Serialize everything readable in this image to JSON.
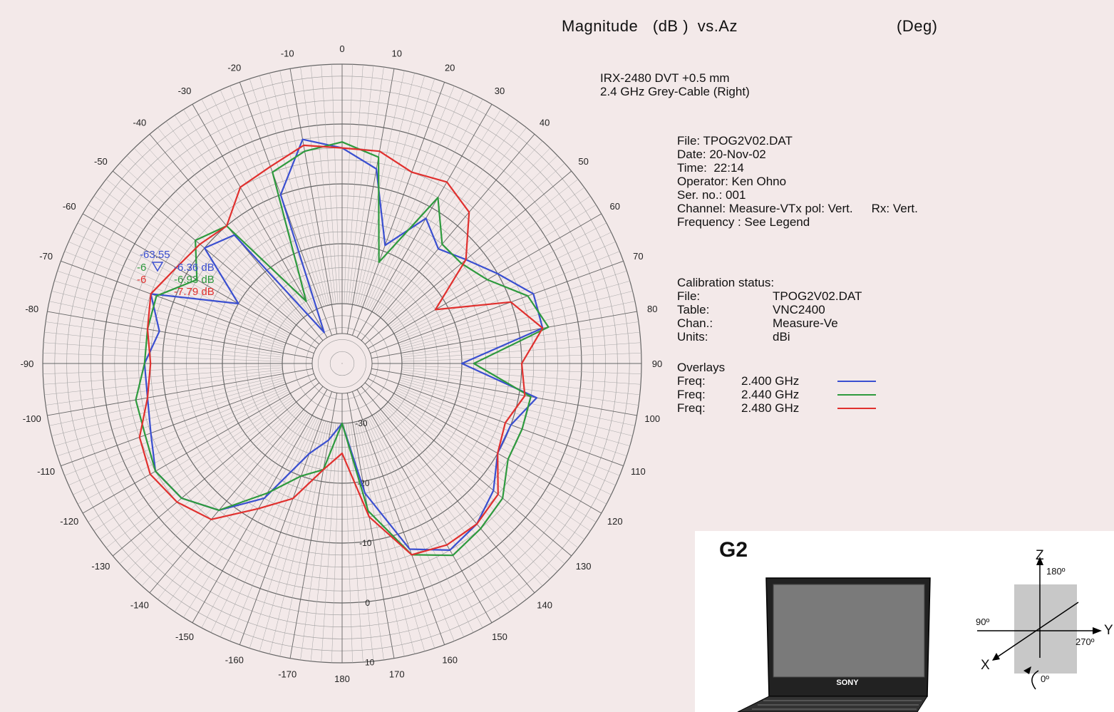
{
  "chart_data": {
    "type": "polar-line",
    "title": "Magnitude (dB) vs. Az (Deg)",
    "title_parts": [
      "Magnitude",
      "(dB )",
      "vs.Az",
      "(Deg)"
    ],
    "angle_ticks": [
      0,
      10,
      20,
      30,
      40,
      50,
      60,
      70,
      80,
      90,
      100,
      110,
      120,
      130,
      140,
      150,
      160,
      170,
      180,
      -170,
      -160,
      -150,
      -140,
      -130,
      -120,
      -110,
      -100,
      -90,
      -80,
      -70,
      -60,
      -50,
      -40,
      -30,
      -20,
      -10
    ],
    "radial_ticks": [
      {
        "value": -30,
        "label": "-30"
      },
      {
        "value": -20,
        "label": "-20"
      },
      {
        "value": -10,
        "label": "-10"
      },
      {
        "value": 0,
        "label": "0"
      },
      {
        "value": 10,
        "label": "10"
      }
    ],
    "r_range": [
      -40,
      10
    ],
    "grid": true,
    "markers": [
      {
        "label": "-63.55",
        "color": "#3a4fd0"
      },
      {
        "label": "-6",
        "color": "#2e9a3e"
      },
      {
        "label": "-6",
        "color": "#e0302e"
      },
      {
        "label": "-6.36 dB",
        "color": "#3a4fd0"
      },
      {
        "label": "-6.93 dB",
        "color": "#2e9a3e"
      },
      {
        "label": "-7.79 dB",
        "color": "#e0302e"
      }
    ],
    "series": [
      {
        "name": "2.400 GHz",
        "color": "#3a4fd0",
        "az": [
          -180,
          -170,
          -160,
          -150,
          -140,
          -130,
          -120,
          -110,
          -100,
          -90,
          -80,
          -70,
          -60,
          -50,
          -40,
          -30,
          -20,
          -10,
          0,
          10,
          20,
          30,
          40,
          50,
          60,
          70,
          80,
          90,
          100,
          110,
          120,
          130,
          140,
          150,
          160,
          170
        ],
        "r": [
          -30,
          -27,
          -24,
          -14,
          -8,
          -5,
          -4,
          -6,
          -7,
          -7,
          -9,
          -6,
          -20,
          -10,
          -12,
          -34,
          -10,
          -2,
          -4,
          -7,
          -19,
          -12,
          -15,
          -13,
          -10,
          -6,
          -6,
          -20,
          -7,
          -10,
          -10,
          -7,
          -5,
          -4,
          -7,
          -18
        ]
      },
      {
        "name": "2.440 GHz",
        "color": "#2e9a3e",
        "az": [
          -180,
          -170,
          -160,
          -150,
          -140,
          -130,
          -120,
          -110,
          -100,
          -90,
          -80,
          -70,
          -60,
          -50,
          -40,
          -30,
          -20,
          -10,
          0,
          10,
          20,
          30,
          40,
          50,
          60,
          70,
          80,
          90,
          100,
          110,
          120,
          130,
          140,
          150,
          160,
          170
        ],
        "r": [
          -30,
          -22,
          -20,
          -15,
          -8,
          -5,
          -4,
          -5,
          -5,
          -7,
          -7,
          -7,
          -12,
          -8,
          -10,
          -28,
          -6,
          -4,
          -3,
          -5,
          -22,
          -8,
          -14,
          -14,
          -12,
          -7,
          -5,
          -18,
          -8,
          -8,
          -8,
          -5,
          -4,
          -3,
          -6,
          -15
        ]
      },
      {
        "name": "2.480 GHz",
        "color": "#e0302e",
        "az": [
          -180,
          -170,
          -160,
          -150,
          -140,
          -130,
          -120,
          -110,
          -100,
          -90,
          -80,
          -70,
          -60,
          -50,
          -40,
          -30,
          -20,
          -10,
          0,
          10,
          20,
          30,
          40,
          50,
          60,
          70,
          80,
          90,
          100,
          110,
          120,
          130,
          140,
          150,
          160,
          170
        ],
        "r": [
          -25,
          -22,
          -16,
          -12,
          -6,
          -4,
          -3,
          -4,
          -7,
          -8,
          -7,
          -6,
          -8,
          -9,
          -10,
          -6,
          -5,
          -3,
          -4,
          -4,
          -6,
          -5,
          -7,
          -13,
          -22,
          -10,
          -6,
          -10,
          -9,
          -11,
          -10,
          -6,
          -5,
          -5,
          -6,
          -14
        ]
      }
    ]
  },
  "header": {
    "title_a": "Magnitude",
    "title_b": "(dB )",
    "title_c": "vs.Az",
    "title_d": "(Deg)"
  },
  "info": {
    "line1": "IRX-2480 DVT +0.5 mm",
    "line2": "2.4 GHz Grey-Cable (Right)",
    "file": "File: TPOG2V02.DAT",
    "date": "Date: 20-Nov-02",
    "time": "Time:  22:14",
    "operator": "Operator: Ken Ohno",
    "serno": "Ser. no.: 001",
    "channel_a": "Channel: Measure-VTx pol: Vert.",
    "channel_b": "Rx: Vert.",
    "frequency": "Frequency : See Legend"
  },
  "calibration": {
    "heading": "Calibration status:",
    "rows": [
      {
        "k": "File:",
        "v": "TPOG2V02.DAT"
      },
      {
        "k": "Table:",
        "v": "VNC2400"
      },
      {
        "k": "Chan.:",
        "v": "Measure-Ve"
      },
      {
        "k": "Units:",
        "v": "dBi"
      }
    ]
  },
  "overlays": {
    "heading": "Overlays",
    "rows": [
      {
        "k": "Freq:",
        "v": "2.400 GHz",
        "color": "#3a4fd0"
      },
      {
        "k": "Freq:",
        "v": "2.440 GHz",
        "color": "#2e9a3e"
      },
      {
        "k": "Freq:",
        "v": "2.480 GHz",
        "color": "#e0302e"
      }
    ]
  },
  "inset": {
    "title": "G2",
    "brand": "SONY",
    "axis_z": "Z",
    "axis_y": "Y",
    "axis_x": "X",
    "deg_180": "180º",
    "deg_90": "90º",
    "deg_270": "270º",
    "deg_0": "0º"
  }
}
